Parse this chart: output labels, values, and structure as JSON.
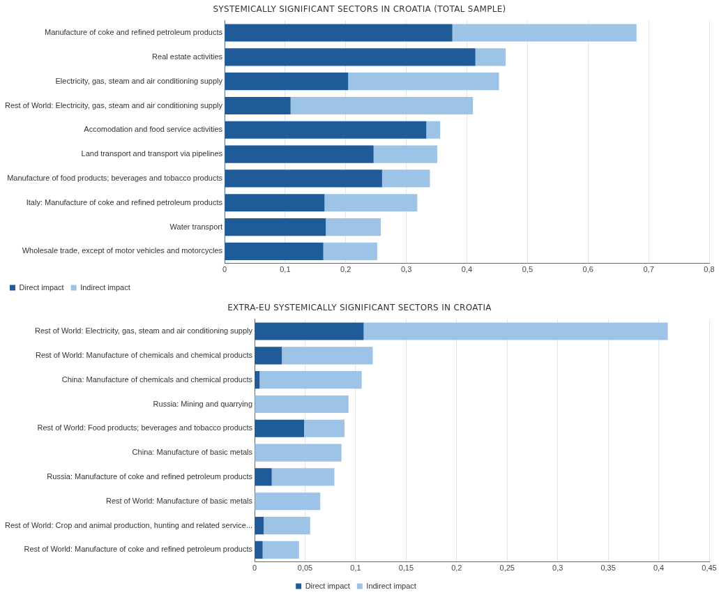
{
  "chart_data": [
    {
      "type": "bar",
      "orientation": "horizontal",
      "stacked": true,
      "title": "SYSTEMICALLY SIGNIFICANT SECTORS IN CROATIA (TOTAL SAMPLE)",
      "categories": [
        "Manufacture of coke and refined petroleum products",
        "Real estate activities",
        "Electricity, gas, steam and air conditioning supply",
        "Rest of World: Electricity, gas, steam and air conditioning supply",
        "Accomodation and food service activities",
        "Land transport and transport via pipelines",
        "Manufacture of food products; beverages and tobacco products",
        "Italy: Manufacture of coke and refined petroleum products",
        "Water transport",
        "Wholesale trade, except of motor vehicles and motorcycles"
      ],
      "series": [
        {
          "name": "Direct impact",
          "color": "#1f5b99",
          "values": [
            0.376,
            0.414,
            0.204,
            0.109,
            0.333,
            0.246,
            0.26,
            0.165,
            0.167,
            0.163
          ]
        },
        {
          "name": "Indirect impact",
          "color": "#9dc3e6",
          "values": [
            0.304,
            0.05,
            0.249,
            0.301,
            0.023,
            0.105,
            0.079,
            0.153,
            0.091,
            0.089
          ]
        }
      ],
      "xlim": [
        0,
        0.8
      ],
      "xticks": [
        0,
        {
          "value": 0.1,
          "label": "0,1"
        },
        {
          "value": 0.2,
          "label": "0,2"
        },
        {
          "value": 0.3,
          "label": "0,3"
        },
        {
          "value": 0.4,
          "label": "0,4"
        },
        {
          "value": 0.5,
          "label": "0,5"
        },
        {
          "value": 0.6,
          "label": "0,6"
        },
        {
          "value": 0.7,
          "label": "0,7"
        },
        {
          "value": 0.8,
          "label": "0,8"
        }
      ],
      "grid": "x",
      "legend": "bottom left"
    },
    {
      "type": "bar",
      "orientation": "horizontal",
      "stacked": true,
      "title": "EXTRA-EU SYSTEMICALLY SIGNIFICANT SECTORS IN CROATIA",
      "categories": [
        "Rest of World: Electricity, gas, steam and air conditioning supply",
        "Rest of World: Manufacture of chemicals and chemical products",
        "China: Manufacture of chemicals and chemical products",
        "Russia: Mining and quarrying",
        "Rest of World: Food products; beverages and tobacco products",
        "China: Manufacture of basic metals",
        "Russia: Manufacture of coke and refined petroleum products",
        "Rest of World: Manufacture of basic metals",
        "Rest of World: Crop and animal production, hunting and related service...",
        "Rest of World: Manufacture of coke and refined petroleum products"
      ],
      "series": [
        {
          "name": "Direct impact",
          "color": "#1f5b99",
          "values": [
            0.108,
            0.027,
            0.005,
            0,
            0.049,
            0,
            0.017,
            0,
            0.009,
            0.008
          ]
        },
        {
          "name": "Indirect impact",
          "color": "#9dc3e6",
          "values": [
            0.301,
            0.09,
            0.101,
            0.093,
            0.04,
            0.086,
            0.062,
            0.065,
            0.046,
            0.036
          ]
        }
      ],
      "xlim": [
        0,
        0.45
      ],
      "xticks": [
        0,
        {
          "value": 0.05,
          "label": "0,05"
        },
        {
          "value": 0.1,
          "label": "0,1"
        },
        {
          "value": 0.15,
          "label": "0,15"
        },
        {
          "value": 0.2,
          "label": "0,2"
        },
        {
          "value": 0.25,
          "label": "0,25"
        },
        {
          "value": 0.3,
          "label": "0,3"
        },
        {
          "value": 0.35,
          "label": "0,35"
        },
        {
          "value": 0.4,
          "label": "0,4"
        },
        {
          "value": 0.45,
          "label": "0,45"
        }
      ],
      "grid": "x",
      "legend": "bottom"
    }
  ]
}
